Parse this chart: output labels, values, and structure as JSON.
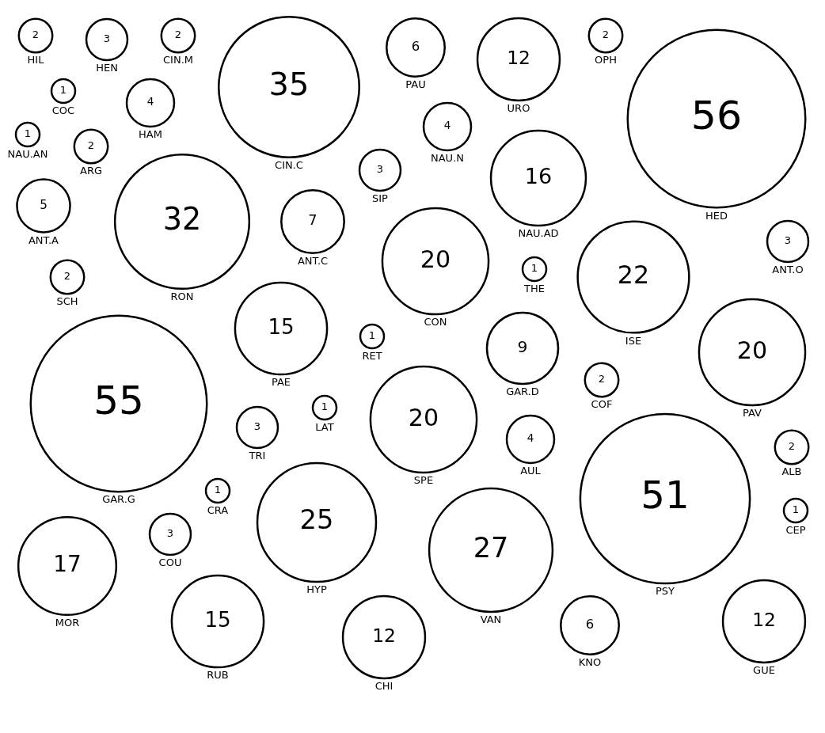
{
  "chart_data": {
    "type": "other",
    "data_labels": true,
    "categories": [
      "HIL",
      "HEN",
      "CIN.M",
      "CIN.C",
      "PAU",
      "URO",
      "OPH",
      "HED",
      "COC",
      "HAM",
      "NAU.N",
      "NAU.AD",
      "NAU.AN",
      "ARG",
      "RON",
      "SIP",
      "CON",
      "ISE",
      "ANT.A",
      "ANT.C",
      "ANT.O",
      "SCH",
      "PAE",
      "THE",
      "PAV",
      "GAR.G",
      "GAR.D",
      "RET",
      "SPE",
      "COF",
      "PSY",
      "LAT",
      "TRI",
      "AUL",
      "HYP",
      "ALB",
      "VAN",
      "CRA",
      "MOR",
      "COU",
      "RUB",
      "CEP",
      "GUE",
      "CHI",
      "KNO"
    ],
    "values": [
      2,
      3,
      2,
      35,
      6,
      12,
      2,
      56,
      1,
      4,
      4,
      16,
      1,
      2,
      32,
      3,
      20,
      22,
      5,
      7,
      3,
      2,
      15,
      1,
      20,
      55,
      9,
      1,
      20,
      2,
      51,
      1,
      3,
      4,
      25,
      2,
      27,
      1,
      17,
      3,
      15,
      1,
      12,
      12,
      6
    ]
  }
}
